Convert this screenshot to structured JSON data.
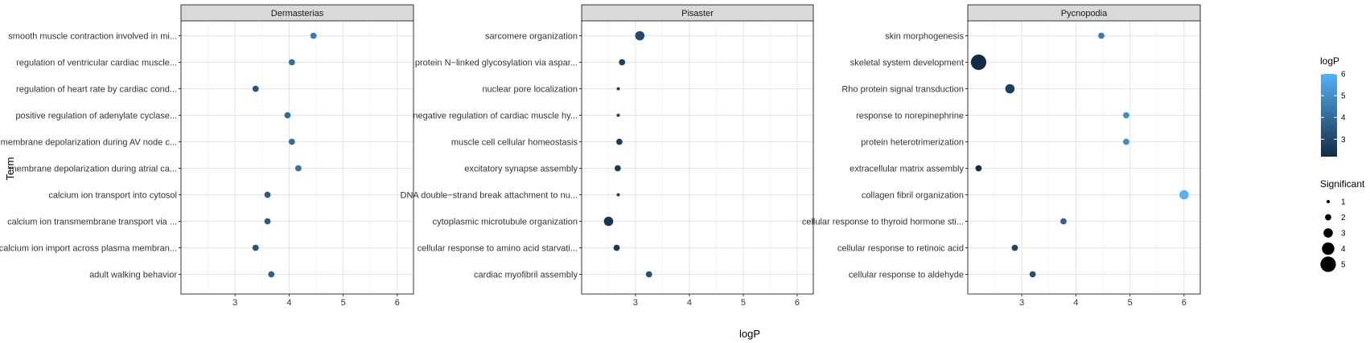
{
  "chart_data": {
    "type": "scatter",
    "xlabel": "logP",
    "ylabel": "Term",
    "xlim": [
      2.0,
      6.3
    ],
    "x_ticks": [
      3,
      4,
      5,
      6
    ],
    "grid": true,
    "legend_placement": "right",
    "panels": [
      {
        "title": "Dermasterias",
        "terms": [
          "smooth muscle contraction involved in mi...",
          "regulation of ventricular cardiac muscle...",
          "regulation of heart rate by cardiac cond...",
          "positive regulation of adenylate cyclase...",
          "membrane depolarization during AV node c...",
          "membrane depolarization during atrial ca...",
          "calcium ion transport into cytosol",
          "calcium ion transmembrane transport via ...",
          "calcium ion import across plasma membran...",
          "adult walking behavior"
        ],
        "logP": [
          4.45,
          4.05,
          3.38,
          3.97,
          4.05,
          4.17,
          3.6,
          3.6,
          3.38,
          3.67
        ],
        "significant": [
          2,
          2,
          2,
          2,
          2,
          2,
          2,
          2,
          2,
          2
        ]
      },
      {
        "title": "Pisaster",
        "terms": [
          "sarcomere organization",
          "protein N−linked glycosylation via aspar...",
          "nuclear pore localization",
          "negative regulation of cardiac muscle hy...",
          "muscle cell cellular homeostasis",
          "excitatory synapse assembly",
          "DNA double−strand break attachment to nu...",
          "cytoplasmic microtubule organization",
          "cellular response to amino acid starvati...",
          "cardiac myofibril assembly"
        ],
        "logP": [
          3.08,
          2.75,
          2.68,
          2.68,
          2.7,
          2.67,
          2.68,
          2.5,
          2.65,
          3.25
        ],
        "significant": [
          3,
          2,
          1,
          1,
          2,
          2,
          1,
          3,
          2,
          2
        ]
      },
      {
        "title": "Pycnopodia",
        "terms": [
          "skin morphogenesis",
          "skeletal system development",
          "Rho protein signal transduction",
          "response to norepinephrine",
          "protein heterotrimerization",
          "extracellular matrix assembly",
          "collagen fibril organization",
          "cellular response to thyroid hormone sti...",
          "cellular response to retinoic acid",
          "cellular response to aldehyde"
        ],
        "logP": [
          4.47,
          2.2,
          2.78,
          4.93,
          4.93,
          2.2,
          6.0,
          3.77,
          2.87,
          3.2
        ],
        "significant": [
          2,
          5,
          3,
          2,
          2,
          2,
          3,
          2,
          2,
          2
        ]
      }
    ],
    "color_legend": {
      "title": "logP",
      "labels": [
        "6",
        "5",
        "4",
        "3"
      ],
      "values": [
        6,
        5,
        4,
        3
      ],
      "range": [
        2.2,
        6.0
      ],
      "low_color": "#132B43",
      "high_color": "#56B1F7"
    },
    "size_legend": {
      "title": "Significant",
      "labels": [
        "1",
        "2",
        "3",
        "4",
        "5"
      ],
      "values": [
        1,
        2,
        3,
        4,
        5
      ]
    }
  }
}
